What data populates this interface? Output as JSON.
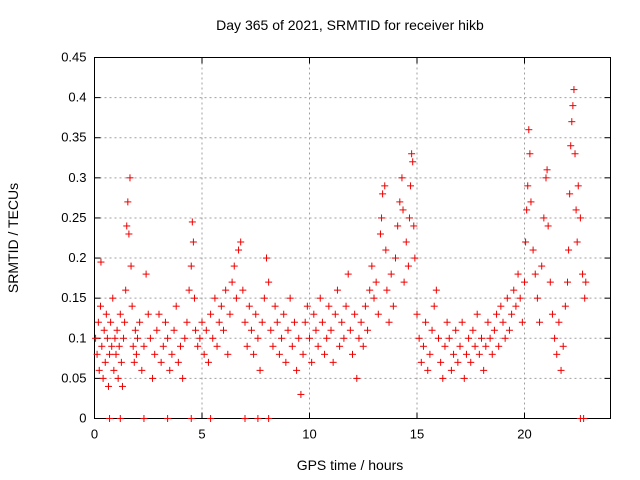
{
  "chart_data": {
    "type": "scatter",
    "title": "Day 365 of 2021, SRMTID for receiver hikb",
    "xlabel": "GPS time / hours",
    "ylabel": "SRMTID / TECUs",
    "xlim": [
      0,
      24
    ],
    "ylim": [
      0,
      0.45
    ],
    "xticks": [
      0,
      5,
      10,
      15,
      20
    ],
    "yticks": [
      0,
      0.05,
      0.1,
      0.15,
      0.2,
      0.25,
      0.3,
      0.35,
      0.4,
      0.45
    ],
    "grid": true,
    "marker": "+",
    "color": "#ee0000",
    "series": [
      {
        "name": "SRMTID",
        "points": [
          [
            0.05,
            0.1
          ],
          [
            0.12,
            0.08
          ],
          [
            0.18,
            0.12
          ],
          [
            0.22,
            0.06
          ],
          [
            0.28,
            0.14
          ],
          [
            0.3,
            0.195
          ],
          [
            0.34,
            0.09
          ],
          [
            0.4,
            0.05
          ],
          [
            0.45,
            0.11
          ],
          [
            0.5,
            0.07
          ],
          [
            0.55,
            0.13
          ],
          [
            0.6,
            0.1
          ],
          [
            0.65,
            0.04
          ],
          [
            0.7,
            0.08
          ],
          [
            0.75,
            0.12
          ],
          [
            0.8,
            0.09
          ],
          [
            0.85,
            0.15
          ],
          [
            0.9,
            0.06
          ],
          [
            0.95,
            0.1
          ],
          [
            1.0,
            0.08
          ],
          [
            1.05,
            0.11
          ],
          [
            1.1,
            0.05
          ],
          [
            1.15,
            0.09
          ],
          [
            1.2,
            0.13
          ],
          [
            1.25,
            0.07
          ],
          [
            1.3,
            0.04
          ],
          [
            1.35,
            0.1
          ],
          [
            1.4,
            0.12
          ],
          [
            1.45,
            0.16
          ],
          [
            1.5,
            0.24
          ],
          [
            1.55,
            0.27
          ],
          [
            1.6,
            0.23
          ],
          [
            1.65,
            0.3
          ],
          [
            1.7,
            0.19
          ],
          [
            1.75,
            0.14
          ],
          [
            1.8,
            0.09
          ],
          [
            1.85,
            0.07
          ],
          [
            1.9,
            0.11
          ],
          [
            1.95,
            0.08
          ],
          [
            2.0,
            0.1
          ],
          [
            2.1,
            0.12
          ],
          [
            2.2,
            0.06
          ],
          [
            2.3,
            0.09
          ],
          [
            2.4,
            0.18
          ],
          [
            2.5,
            0.13
          ],
          [
            2.6,
            0.1
          ],
          [
            2.7,
            0.05
          ],
          [
            2.8,
            0.08
          ],
          [
            2.9,
            0.11
          ],
          [
            3.0,
            0.13
          ],
          [
            3.1,
            0.07
          ],
          [
            3.2,
            0.09
          ],
          [
            3.3,
            0.12
          ],
          [
            3.4,
            0.1
          ],
          [
            3.5,
            0.06
          ],
          [
            3.6,
            0.08
          ],
          [
            3.7,
            0.11
          ],
          [
            3.8,
            0.14
          ],
          [
            3.9,
            0.07
          ],
          [
            4.0,
            0.09
          ],
          [
            4.1,
            0.05
          ],
          [
            4.2,
            0.1
          ],
          [
            4.3,
            0.12
          ],
          [
            4.4,
            0.16
          ],
          [
            4.5,
            0.19
          ],
          [
            4.55,
            0.245
          ],
          [
            4.6,
            0.22
          ],
          [
            4.65,
            0.15
          ],
          [
            4.7,
            0.11
          ],
          [
            4.8,
            0.09
          ],
          [
            4.9,
            0.1
          ],
          [
            5.0,
            0.12
          ],
          [
            5.1,
            0.08
          ],
          [
            5.2,
            0.11
          ],
          [
            5.3,
            0.07
          ],
          [
            5.4,
            0.13
          ],
          [
            5.5,
            0.1
          ],
          [
            5.6,
            0.15
          ],
          [
            5.7,
            0.09
          ],
          [
            5.8,
            0.12
          ],
          [
            5.9,
            0.14
          ],
          [
            6.0,
            0.11
          ],
          [
            6.1,
            0.16
          ],
          [
            6.2,
            0.08
          ],
          [
            6.3,
            0.13
          ],
          [
            6.4,
            0.17
          ],
          [
            6.5,
            0.19
          ],
          [
            6.6,
            0.15
          ],
          [
            6.7,
            0.21
          ],
          [
            6.8,
            0.22
          ],
          [
            6.9,
            0.16
          ],
          [
            7.0,
            0.12
          ],
          [
            7.1,
            0.09
          ],
          [
            7.2,
            0.14
          ],
          [
            7.3,
            0.11
          ],
          [
            7.4,
            0.08
          ],
          [
            7.5,
            0.13
          ],
          [
            7.6,
            0.1
          ],
          [
            7.7,
            0.06
          ],
          [
            7.8,
            0.12
          ],
          [
            7.9,
            0.15
          ],
          [
            8.0,
            0.2
          ],
          [
            8.1,
            0.17
          ],
          [
            8.2,
            0.11
          ],
          [
            8.3,
            0.09
          ],
          [
            8.4,
            0.14
          ],
          [
            8.5,
            0.12
          ],
          [
            8.6,
            0.08
          ],
          [
            8.7,
            0.1
          ],
          [
            8.8,
            0.13
          ],
          [
            8.9,
            0.07
          ],
          [
            9.0,
            0.11
          ],
          [
            9.1,
            0.15
          ],
          [
            9.2,
            0.09
          ],
          [
            9.3,
            0.12
          ],
          [
            9.4,
            0.06
          ],
          [
            9.5,
            0.1
          ],
          [
            9.6,
            0.03
          ],
          [
            9.7,
            0.08
          ],
          [
            9.8,
            0.12
          ],
          [
            9.9,
            0.14
          ],
          [
            10.0,
            0.1
          ],
          [
            10.1,
            0.07
          ],
          [
            10.2,
            0.13
          ],
          [
            10.3,
            0.11
          ],
          [
            10.4,
            0.09
          ],
          [
            10.5,
            0.15
          ],
          [
            10.6,
            0.12
          ],
          [
            10.7,
            0.08
          ],
          [
            10.8,
            0.1
          ],
          [
            10.9,
            0.14
          ],
          [
            11.0,
            0.11
          ],
          [
            11.1,
            0.07
          ],
          [
            11.2,
            0.13
          ],
          [
            11.3,
            0.16
          ],
          [
            11.4,
            0.09
          ],
          [
            11.5,
            0.12
          ],
          [
            11.6,
            0.1
          ],
          [
            11.7,
            0.14
          ],
          [
            11.8,
            0.18
          ],
          [
            11.9,
            0.11
          ],
          [
            12.0,
            0.08
          ],
          [
            12.1,
            0.13
          ],
          [
            12.2,
            0.05
          ],
          [
            12.3,
            0.1
          ],
          [
            12.4,
            0.12
          ],
          [
            12.5,
            0.09
          ],
          [
            12.6,
            0.14
          ],
          [
            12.7,
            0.11
          ],
          [
            12.8,
            0.16
          ],
          [
            12.9,
            0.19
          ],
          [
            13.0,
            0.15
          ],
          [
            13.1,
            0.17
          ],
          [
            13.2,
            0.13
          ],
          [
            13.3,
            0.23
          ],
          [
            13.35,
            0.25
          ],
          [
            13.4,
            0.28
          ],
          [
            13.5,
            0.29
          ],
          [
            13.55,
            0.21
          ],
          [
            13.6,
            0.16
          ],
          [
            13.7,
            0.12
          ],
          [
            13.8,
            0.18
          ],
          [
            13.9,
            0.14
          ],
          [
            14.0,
            0.2
          ],
          [
            14.1,
            0.24
          ],
          [
            14.2,
            0.27
          ],
          [
            14.3,
            0.3
          ],
          [
            14.35,
            0.26
          ],
          [
            14.4,
            0.17
          ],
          [
            14.5,
            0.22
          ],
          [
            14.6,
            0.19
          ],
          [
            14.65,
            0.25
          ],
          [
            14.7,
            0.29
          ],
          [
            14.75,
            0.33
          ],
          [
            14.8,
            0.32
          ],
          [
            14.85,
            0.24
          ],
          [
            14.9,
            0.2
          ],
          [
            15.0,
            0.13
          ],
          [
            15.1,
            0.1
          ],
          [
            15.2,
            0.07
          ],
          [
            15.3,
            0.09
          ],
          [
            15.4,
            0.12
          ],
          [
            15.5,
            0.06
          ],
          [
            15.6,
            0.08
          ],
          [
            15.7,
            0.11
          ],
          [
            15.8,
            0.14
          ],
          [
            15.9,
            0.16
          ],
          [
            16.0,
            0.1
          ],
          [
            16.1,
            0.07
          ],
          [
            16.2,
            0.05
          ],
          [
            16.3,
            0.09
          ],
          [
            16.4,
            0.12
          ],
          [
            16.5,
            0.1
          ],
          [
            16.6,
            0.06
          ],
          [
            16.7,
            0.08
          ],
          [
            16.8,
            0.11
          ],
          [
            16.9,
            0.07
          ],
          [
            17.0,
            0.09
          ],
          [
            17.1,
            0.12
          ],
          [
            17.2,
            0.05
          ],
          [
            17.3,
            0.08
          ],
          [
            17.4,
            0.1
          ],
          [
            17.5,
            0.07
          ],
          [
            17.6,
            0.11
          ],
          [
            17.7,
            0.09
          ],
          [
            17.8,
            0.13
          ],
          [
            17.9,
            0.08
          ],
          [
            18.0,
            0.1
          ],
          [
            18.1,
            0.06
          ],
          [
            18.2,
            0.09
          ],
          [
            18.3,
            0.12
          ],
          [
            18.4,
            0.1
          ],
          [
            18.5,
            0.08
          ],
          [
            18.6,
            0.11
          ],
          [
            18.7,
            0.13
          ],
          [
            18.8,
            0.09
          ],
          [
            18.9,
            0.14
          ],
          [
            19.0,
            0.12
          ],
          [
            19.1,
            0.1
          ],
          [
            19.2,
            0.15
          ],
          [
            19.3,
            0.11
          ],
          [
            19.4,
            0.13
          ],
          [
            19.5,
            0.16
          ],
          [
            19.6,
            0.14
          ],
          [
            19.7,
            0.18
          ],
          [
            19.8,
            0.15
          ],
          [
            19.9,
            0.12
          ],
          [
            20.0,
            0.17
          ],
          [
            20.05,
            0.22
          ],
          [
            20.1,
            0.26
          ],
          [
            20.15,
            0.29
          ],
          [
            20.2,
            0.36
          ],
          [
            20.25,
            0.33
          ],
          [
            20.3,
            0.27
          ],
          [
            20.4,
            0.21
          ],
          [
            20.5,
            0.18
          ],
          [
            20.6,
            0.15
          ],
          [
            20.7,
            0.12
          ],
          [
            20.8,
            0.19
          ],
          [
            20.9,
            0.25
          ],
          [
            21.0,
            0.3
          ],
          [
            21.05,
            0.31
          ],
          [
            21.1,
            0.24
          ],
          [
            21.2,
            0.17
          ],
          [
            21.3,
            0.13
          ],
          [
            21.4,
            0.1
          ],
          [
            21.5,
            0.08
          ],
          [
            21.6,
            0.12
          ],
          [
            21.7,
            0.06
          ],
          [
            21.8,
            0.09
          ],
          [
            21.9,
            0.14
          ],
          [
            22.0,
            0.17
          ],
          [
            22.05,
            0.21
          ],
          [
            22.1,
            0.28
          ],
          [
            22.15,
            0.34
          ],
          [
            22.2,
            0.37
          ],
          [
            22.25,
            0.39
          ],
          [
            22.3,
            0.41
          ],
          [
            22.35,
            0.33
          ],
          [
            22.4,
            0.26
          ],
          [
            22.45,
            0.22
          ],
          [
            22.5,
            0.29
          ],
          [
            22.6,
            0.25
          ],
          [
            22.7,
            0.18
          ],
          [
            22.8,
            0.15
          ],
          [
            22.85,
            0.17
          ],
          [
            0.7,
            0
          ],
          [
            1.2,
            0
          ],
          [
            2.3,
            0
          ],
          [
            3.4,
            0
          ],
          [
            4.5,
            0
          ],
          [
            5.4,
            0
          ],
          [
            7.0,
            0
          ],
          [
            7.6,
            0
          ],
          [
            8.1,
            0
          ],
          [
            22.6,
            0
          ],
          [
            22.75,
            0
          ]
        ]
      }
    ]
  }
}
